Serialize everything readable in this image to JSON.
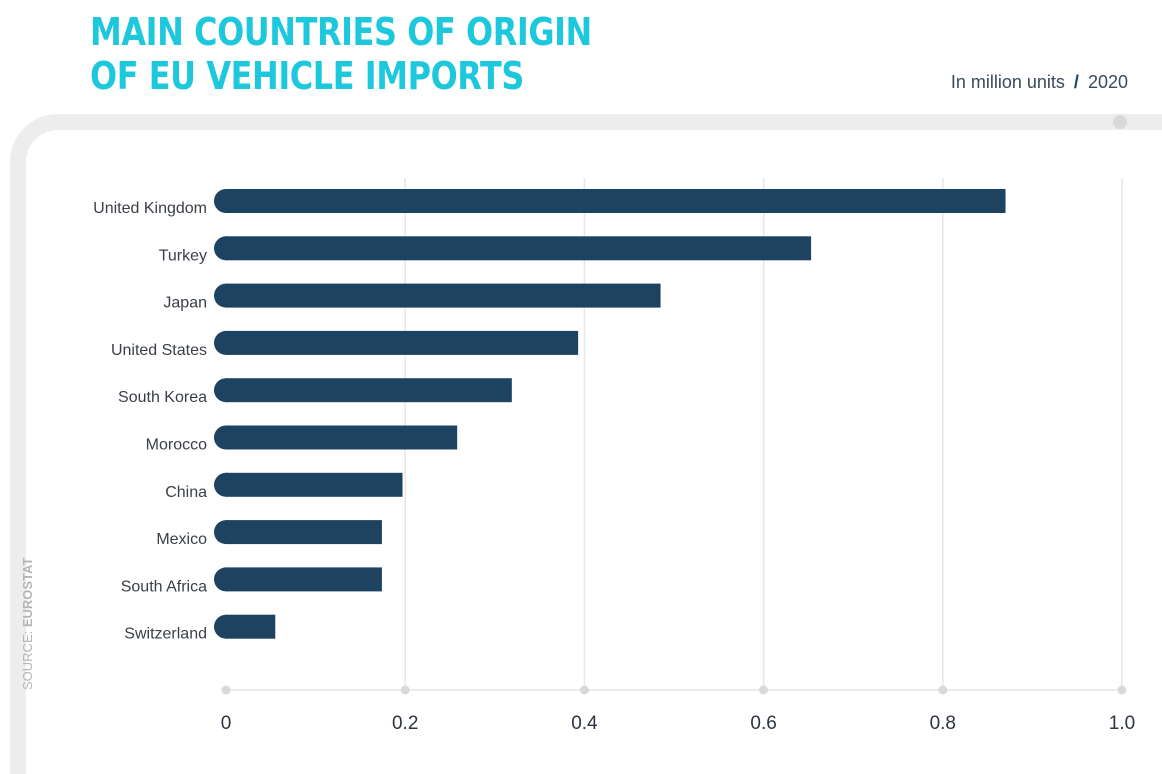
{
  "header": {
    "title_line1": "MAIN COUNTRIES OF ORIGIN",
    "title_line2": "OF EU VEHICLE IMPORTS",
    "unit_text": "In million units",
    "separator": "/",
    "year": "2020"
  },
  "source": {
    "prefix": "SOURCE: ",
    "name": "EUROSTAT"
  },
  "colors": {
    "title": "#1ec8dc",
    "bar": "#1d4361",
    "grid": "#e6e6e6",
    "frame": "#ededed"
  },
  "chart_data": {
    "type": "bar",
    "orientation": "horizontal",
    "categories": [
      "United Kingdom",
      "Turkey",
      "Japan",
      "United States",
      "South Korea",
      "Morocco",
      "China",
      "Mexico",
      "South Africa",
      "Switzerland"
    ],
    "values": [
      0.87,
      0.653,
      0.485,
      0.393,
      0.319,
      0.258,
      0.197,
      0.174,
      0.174,
      0.055
    ],
    "xlim": [
      0,
      1.0
    ],
    "xticks": [
      "0",
      "0.2",
      "0.4",
      "0.6",
      "0.8",
      "1.0"
    ],
    "grid": true,
    "legend": "none"
  }
}
